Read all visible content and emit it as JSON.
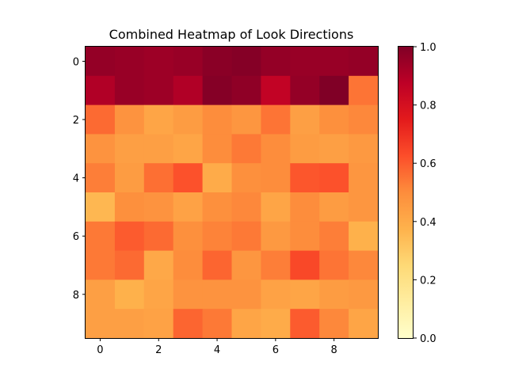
{
  "chart_data": {
    "type": "heatmap",
    "title": "Combined Heatmap of Look Directions",
    "colormap": "YlOrRd",
    "x_ticks": [
      0,
      2,
      4,
      6,
      8
    ],
    "y_ticks": [
      0,
      2,
      4,
      6,
      8
    ],
    "colorbar_ticks": [
      "0.0",
      "0.2",
      "0.4",
      "0.6",
      "0.8",
      "1.0"
    ],
    "vmin": 0.0,
    "vmax": 1.0,
    "values": [
      [
        0.96,
        0.95,
        0.94,
        0.95,
        0.98,
        0.99,
        0.96,
        0.95,
        0.95,
        0.96
      ],
      [
        0.9,
        0.95,
        0.94,
        0.9,
        0.99,
        0.97,
        0.86,
        0.96,
        1.0,
        0.55
      ],
      [
        0.57,
        0.48,
        0.42,
        0.45,
        0.5,
        0.47,
        0.55,
        0.44,
        0.49,
        0.51
      ],
      [
        0.48,
        0.44,
        0.44,
        0.42,
        0.5,
        0.54,
        0.5,
        0.45,
        0.44,
        0.46
      ],
      [
        0.53,
        0.45,
        0.56,
        0.62,
        0.4,
        0.49,
        0.5,
        0.61,
        0.62,
        0.47
      ],
      [
        0.36,
        0.49,
        0.48,
        0.43,
        0.49,
        0.51,
        0.42,
        0.5,
        0.45,
        0.47
      ],
      [
        0.54,
        0.6,
        0.57,
        0.49,
        0.52,
        0.54,
        0.46,
        0.5,
        0.53,
        0.38
      ],
      [
        0.54,
        0.57,
        0.41,
        0.5,
        0.58,
        0.47,
        0.53,
        0.64,
        0.55,
        0.51
      ],
      [
        0.44,
        0.38,
        0.42,
        0.48,
        0.48,
        0.48,
        0.43,
        0.42,
        0.45,
        0.46
      ],
      [
        0.44,
        0.44,
        0.43,
        0.58,
        0.54,
        0.42,
        0.4,
        0.6,
        0.51,
        0.42
      ]
    ]
  }
}
